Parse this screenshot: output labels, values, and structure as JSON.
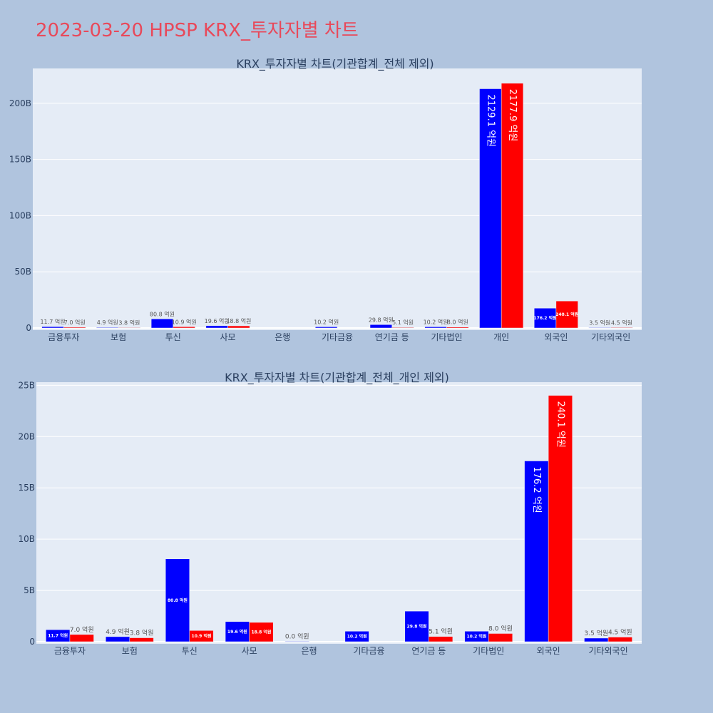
{
  "title": "2023-03-20 HPSP KRX_투자자별 차트",
  "colors": {
    "buy": "#0000ff",
    "sell": "#ff0000",
    "plot_bg": "#e5ecf6",
    "page_bg": "#b0c4de",
    "title": "#e8495a"
  },
  "chart_data": [
    {
      "type": "bar",
      "title": "KRX_투자자별 차트(기관합계_전체 제외)",
      "categories": [
        "금융투자",
        "보험",
        "투신",
        "사모",
        "은행",
        "기타금융",
        "연기금 등",
        "기타법인",
        "개인",
        "외국인",
        "기타외국인"
      ],
      "series": [
        {
          "color": "#0000ff",
          "values": [
            1.17,
            0.49,
            8.08,
            1.96,
            null,
            1.02,
            2.98,
            1.02,
            212.91,
            17.62,
            0.35
          ],
          "labels": [
            "11.7 억원",
            "4.9 억원",
            "80.8 억원",
            "19.6 억원",
            "",
            "10.2 억원",
            "29.8 억원",
            "10.2 억원",
            "2129.1 억원",
            "176.2 억원",
            "3.5 억원"
          ]
        },
        {
          "color": "#ff0000",
          "values": [
            0.7,
            0.38,
            1.09,
            1.88,
            null,
            null,
            0.51,
            0.8,
            217.79,
            24.01,
            0.45
          ],
          "labels": [
            "7.0 억원",
            "3.8 억원",
            "10.9 억원",
            "18.8 억원",
            "",
            "",
            "5.1 억원",
            "8.0 억원",
            "2177.9 억원",
            "240.1 억원",
            "4.5 억원"
          ]
        }
      ],
      "ylim": [
        0,
        231
      ],
      "yticks": [
        0,
        50,
        100,
        150,
        200
      ],
      "ytick_labels": [
        "0",
        "50B",
        "100B",
        "150B",
        "200B"
      ],
      "grid": true
    },
    {
      "type": "bar",
      "title": "KRX_투자자별 차트(기관합계_전체_개인 제외)",
      "categories": [
        "금융투자",
        "보험",
        "투신",
        "사모",
        "은행",
        "기타금융",
        "연기금 등",
        "기타법인",
        "외국인",
        "기타외국인"
      ],
      "series": [
        {
          "color": "#0000ff",
          "values": [
            1.17,
            0.49,
            8.08,
            1.96,
            0.0,
            1.02,
            2.98,
            1.02,
            17.62,
            0.35
          ],
          "labels": [
            "11.7 억원",
            "4.9 억원",
            "80.8 억원",
            "19.6 억원",
            "0.0 억원",
            "10.2 억원",
            "29.8 억원",
            "10.2 억원",
            "176.2 억원",
            "3.5 억원"
          ]
        },
        {
          "color": "#ff0000",
          "values": [
            0.7,
            0.38,
            1.09,
            1.88,
            null,
            null,
            0.51,
            0.8,
            24.01,
            0.45
          ],
          "labels": [
            "7.0 억원",
            "3.8 억원",
            "10.9 억원",
            "18.8 억원",
            "",
            "",
            "5.1 억원",
            "8.0 억원",
            "240.1 억원",
            "4.5 억원"
          ]
        }
      ],
      "ylim": [
        0,
        25.3
      ],
      "yticks": [
        0,
        5,
        10,
        15,
        20,
        25
      ],
      "ytick_labels": [
        "0",
        "5B",
        "10B",
        "15B",
        "20B",
        "25B"
      ],
      "grid": true
    }
  ]
}
